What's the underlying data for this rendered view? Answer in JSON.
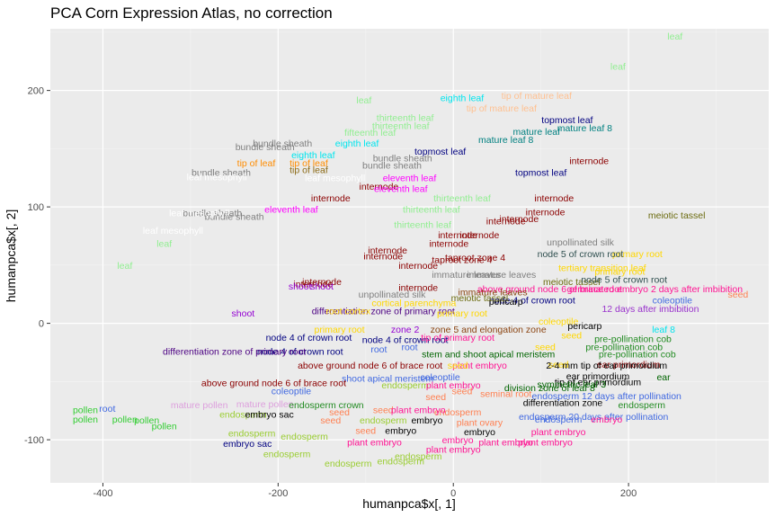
{
  "chart_data": {
    "type": "scatter",
    "title": "PCA Corn Expression Atlas, no correction",
    "xlabel": "humanpca$x[, 1]",
    "ylabel": "humanpca$x[, 2]",
    "xlim": [
      -460,
      360
    ],
    "ylim": [
      -137,
      253
    ],
    "xticks": [
      -400,
      -200,
      0,
      200
    ],
    "yticks": [
      -100,
      0,
      100,
      200
    ],
    "grid": true,
    "background": "#ebebeb",
    "points": [
      {
        "x": 253,
        "y": 247,
        "label": "leaf",
        "color": "#90ee90"
      },
      {
        "x": 188,
        "y": 221,
        "label": "leaf",
        "color": "#90ee90"
      },
      {
        "x": -102,
        "y": 192,
        "label": "leaf",
        "color": "#90ee90"
      },
      {
        "x": -330,
        "y": 69,
        "label": "leaf",
        "color": "#90ee90"
      },
      {
        "x": -375,
        "y": 50,
        "label": "leaf",
        "color": "#90ee90"
      },
      {
        "x": 10,
        "y": 194,
        "label": "eighth leaf",
        "color": "#00e5ee"
      },
      {
        "x": -110,
        "y": 155,
        "label": "eighth leaf",
        "color": "#00e5ee"
      },
      {
        "x": -160,
        "y": 145,
        "label": "eighth leaf",
        "color": "#00e5ee"
      },
      {
        "x": 95,
        "y": 196,
        "label": "tip of mature leaf",
        "color": "#ffc090"
      },
      {
        "x": 55,
        "y": 185,
        "label": "tip of mature leaf",
        "color": "#ffc090"
      },
      {
        "x": -225,
        "y": 138,
        "label": "tip of leaf",
        "color": "#ff8c00"
      },
      {
        "x": -165,
        "y": 138,
        "label": "tip of leaf",
        "color": "#ff8c00"
      },
      {
        "x": -165,
        "y": 132,
        "label": "tip of leaf",
        "color": "#8b6914"
      },
      {
        "x": 130,
        "y": 175,
        "label": "topmost leaf",
        "color": "#000080"
      },
      {
        "x": -15,
        "y": 148,
        "label": "topmost leaf",
        "color": "#000080"
      },
      {
        "x": 100,
        "y": 130,
        "label": "topmost leaf",
        "color": "#000080"
      },
      {
        "x": 150,
        "y": 168,
        "label": "mature leaf 8",
        "color": "#008080"
      },
      {
        "x": 60,
        "y": 158,
        "label": "mature leaf 8",
        "color": "#008080"
      },
      {
        "x": 95,
        "y": 165,
        "label": "mature leaf",
        "color": "#008080"
      },
      {
        "x": -195,
        "y": 155,
        "label": "bundle sheath",
        "color": "#808080"
      },
      {
        "x": -215,
        "y": 152,
        "label": "bundle sheath",
        "color": "#808080"
      },
      {
        "x": -58,
        "y": 142,
        "label": "bundle sheath",
        "color": "#808080"
      },
      {
        "x": -70,
        "y": 136,
        "label": "bundle sheath",
        "color": "#808080"
      },
      {
        "x": -265,
        "y": 130,
        "label": "bundle sheath",
        "color": "#808080"
      },
      {
        "x": -275,
        "y": 95,
        "label": "bundle sheath",
        "color": "#808080"
      },
      {
        "x": -250,
        "y": 92,
        "label": "bundle sheath",
        "color": "#808080"
      },
      {
        "x": -270,
        "y": 126,
        "label": "leaf mesophyll",
        "color": "#ffffff"
      },
      {
        "x": -135,
        "y": 125,
        "label": "leaf mesophyll",
        "color": "#ffffff"
      },
      {
        "x": -290,
        "y": 95,
        "label": "leaf mesophyll",
        "color": "#ffffff"
      },
      {
        "x": -320,
        "y": 80,
        "label": "leaf mesophyll",
        "color": "#ffffff"
      },
      {
        "x": 155,
        "y": 140,
        "label": "internode",
        "color": "#8b0000"
      },
      {
        "x": -85,
        "y": 118,
        "label": "internode",
        "color": "#8b0000"
      },
      {
        "x": -140,
        "y": 108,
        "label": "internode",
        "color": "#8b0000"
      },
      {
        "x": 115,
        "y": 108,
        "label": "internode",
        "color": "#8b0000"
      },
      {
        "x": 105,
        "y": 96,
        "label": "internode",
        "color": "#8b0000"
      },
      {
        "x": 75,
        "y": 90,
        "label": "internode",
        "color": "#8b0000"
      },
      {
        "x": 5,
        "y": 76,
        "label": "internode",
        "color": "#8b0000"
      },
      {
        "x": 30,
        "y": 76,
        "label": "internode",
        "color": "#8b0000"
      },
      {
        "x": -75,
        "y": 63,
        "label": "internode",
        "color": "#8b0000"
      },
      {
        "x": -80,
        "y": 58,
        "label": "internode",
        "color": "#8b0000"
      },
      {
        "x": -40,
        "y": 50,
        "label": "internode",
        "color": "#8b0000"
      },
      {
        "x": -150,
        "y": 36,
        "label": "internode",
        "color": "#8b0000"
      },
      {
        "x": -160,
        "y": 34,
        "label": "internode",
        "color": "#8b0000"
      },
      {
        "x": -40,
        "y": 31,
        "label": "internode",
        "color": "#8b0000"
      },
      {
        "x": -5,
        "y": 69,
        "label": "internode",
        "color": "#8b0000"
      },
      {
        "x": 60,
        "y": 88,
        "label": "internode",
        "color": "#8b0000"
      },
      {
        "x": -60,
        "y": 116,
        "label": "eleventh leaf",
        "color": "#ff00ff"
      },
      {
        "x": -50,
        "y": 125,
        "label": "eleventh leaf",
        "color": "#ff00ff"
      },
      {
        "x": -185,
        "y": 98,
        "label": "eleventh leaf",
        "color": "#ff00ff"
      },
      {
        "x": -55,
        "y": 177,
        "label": "thirteenth leaf",
        "color": "#90ee90"
      },
      {
        "x": -60,
        "y": 170,
        "label": "thirteenth leaf",
        "color": "#90ee90"
      },
      {
        "x": 10,
        "y": 108,
        "label": "thirteenth leaf",
        "color": "#90ee90"
      },
      {
        "x": -25,
        "y": 98,
        "label": "thirteenth leaf",
        "color": "#90ee90"
      },
      {
        "x": -35,
        "y": 85,
        "label": "thirteenth leaf",
        "color": "#90ee90"
      },
      {
        "x": -95,
        "y": 164,
        "label": "fifteenth leaf",
        "color": "#90ee90"
      },
      {
        "x": 255,
        "y": 93,
        "label": "meiotic tassel",
        "color": "#6b6b0f"
      },
      {
        "x": 135,
        "y": 36,
        "label": "meiotic tassel",
        "color": "#6b6b0f"
      },
      {
        "x": 145,
        "y": 70,
        "label": "unpollinated silk",
        "color": "#808080"
      },
      {
        "x": -70,
        "y": 25,
        "label": "unpollinated silk",
        "color": "#808080"
      },
      {
        "x": 210,
        "y": 60,
        "label": "primary root",
        "color": "#ffd700"
      },
      {
        "x": 190,
        "y": 45,
        "label": "primary root",
        "color": "#ffd700"
      },
      {
        "x": 145,
        "y": 60,
        "label": "node 5 of crown root",
        "color": "#2f4f4f"
      },
      {
        "x": 195,
        "y": 38,
        "label": "node 5 of crown root",
        "color": "#2f4f4f"
      },
      {
        "x": 170,
        "y": 48,
        "label": "tertiary transition leaf",
        "color": "#ffd700"
      },
      {
        "x": 25,
        "y": 57,
        "label": "taproot zone 4",
        "color": "#8b0000"
      },
      {
        "x": 10,
        "y": 55,
        "label": "taproot zone 4",
        "color": "#8b0000"
      },
      {
        "x": 15,
        "y": 42,
        "label": "immature leaves",
        "color": "#808080"
      },
      {
        "x": 55,
        "y": 42,
        "label": "immature leaves",
        "color": "#808080"
      },
      {
        "x": 230,
        "y": 30,
        "label": "germinated embryo 2 days after imbibition",
        "color": "#ff1493"
      },
      {
        "x": 110,
        "y": 30,
        "label": "above ground node 6 of brace root",
        "color": "#ff1493"
      },
      {
        "x": 45,
        "y": 27,
        "label": "immature leaves",
        "color": "#8b4513"
      },
      {
        "x": 325,
        "y": 25,
        "label": "seed",
        "color": "#ff7f50"
      },
      {
        "x": 250,
        "y": 20,
        "label": "coleoptile",
        "color": "#4169e1"
      },
      {
        "x": -175,
        "y": 32,
        "label": "shoot",
        "color": "#9400d3"
      },
      {
        "x": -150,
        "y": 32,
        "label": "shoot",
        "color": "#9400d3"
      },
      {
        "x": -240,
        "y": 9,
        "label": "shoot",
        "color": "#9400d3"
      },
      {
        "x": 90,
        "y": 20,
        "label": "node 4 of crown root",
        "color": "#000080"
      },
      {
        "x": 60,
        "y": 19,
        "label": "pericarp",
        "color": "#000000"
      },
      {
        "x": 30,
        "y": 22,
        "label": "meiotic tassel",
        "color": "#6b6b0f"
      },
      {
        "x": 225,
        "y": 13,
        "label": "12 days after imbibition",
        "color": "#9932cc"
      },
      {
        "x": -45,
        "y": 18,
        "label": "cortical parenchyma",
        "color": "#ffd700"
      },
      {
        "x": -80,
        "y": 11,
        "label": "differentiation zone of primary root",
        "color": "#4b0082"
      },
      {
        "x": -120,
        "y": 11,
        "label": "root cortex",
        "color": "#ffd700"
      },
      {
        "x": 10,
        "y": 9,
        "label": "primary root",
        "color": "#ffd700"
      },
      {
        "x": 120,
        "y": 2,
        "label": "coleoptile",
        "color": "#ffd700"
      },
      {
        "x": 150,
        "y": -2,
        "label": "pericarp",
        "color": "#000000"
      },
      {
        "x": 240,
        "y": -5,
        "label": "leaf 8",
        "color": "#00e5ee"
      },
      {
        "x": 205,
        "y": -13,
        "label": "pre-pollination cob",
        "color": "#228b22"
      },
      {
        "x": 195,
        "y": -20,
        "label": "pre-pollination cob",
        "color": "#228b22"
      },
      {
        "x": 135,
        "y": -10,
        "label": "seed",
        "color": "#ffd700"
      },
      {
        "x": -130,
        "y": -5,
        "label": "primary root",
        "color": "#ffd700"
      },
      {
        "x": -55,
        "y": -5,
        "label": "zone 2",
        "color": "#9400d3"
      },
      {
        "x": 40,
        "y": -5,
        "label": "zone 5 and elongation zone",
        "color": "#8b4513"
      },
      {
        "x": -55,
        "y": -14,
        "label": "node 4 of crown root",
        "color": "#000080"
      },
      {
        "x": -165,
        "y": -12,
        "label": "node 4 of crown root",
        "color": "#000080"
      },
      {
        "x": -175,
        "y": -24,
        "label": "node 4 of crown root",
        "color": "#000080"
      },
      {
        "x": -250,
        "y": -24,
        "label": "differentiation zone of primary root",
        "color": "#4b0082"
      },
      {
        "x": -50,
        "y": -20,
        "label": "root",
        "color": "#4169e1"
      },
      {
        "x": 5,
        "y": -12,
        "label": "tip of primary root",
        "color": "#ff1493"
      },
      {
        "x": -85,
        "y": -22,
        "label": "root",
        "color": "#4169e1"
      },
      {
        "x": 40,
        "y": -26,
        "label": "stem and shoot apical meristem",
        "color": "#006400"
      },
      {
        "x": 105,
        "y": -20,
        "label": "seed",
        "color": "#ffd700"
      },
      {
        "x": 210,
        "y": -26,
        "label": "pre-pollination cob",
        "color": "#228b22"
      },
      {
        "x": 200,
        "y": -35,
        "label": "ear primordium",
        "color": "#8b0000"
      },
      {
        "x": 120,
        "y": -35,
        "label": "seed",
        "color": "#ffd700"
      },
      {
        "x": -95,
        "y": -36,
        "label": "above ground node 6 of brace root",
        "color": "#8b0000"
      },
      {
        "x": 30,
        "y": -36,
        "label": "plant embryo",
        "color": "#ff1493"
      },
      {
        "x": 5,
        "y": -36,
        "label": "seed",
        "color": "#ffd700"
      },
      {
        "x": 175,
        "y": -36,
        "label": "2-4 mm tip of ear primordium",
        "color": "#000000"
      },
      {
        "x": 165,
        "y": -45,
        "label": "ear primordium",
        "color": "#000000"
      },
      {
        "x": 165,
        "y": -50,
        "label": "tip of ear primordium",
        "color": "#000000"
      },
      {
        "x": 240,
        "y": -46,
        "label": "ear",
        "color": "#006400"
      },
      {
        "x": -15,
        "y": -46,
        "label": "coleoptile",
        "color": "#4169e1"
      },
      {
        "x": -75,
        "y": -47,
        "label": "shoot apical meristem",
        "color": "#4169e1"
      },
      {
        "x": -205,
        "y": -51,
        "label": "above ground node 6 of brace root",
        "color": "#8b0000"
      },
      {
        "x": -55,
        "y": -53,
        "label": "endosperm",
        "color": "#9acd32"
      },
      {
        "x": 0,
        "y": -53,
        "label": "plant embryo",
        "color": "#ff1493"
      },
      {
        "x": 135,
        "y": -52,
        "label": "symmetric leaf 3",
        "color": "#006400"
      },
      {
        "x": 110,
        "y": -55,
        "label": "division zone of leaf 8",
        "color": "#006400"
      },
      {
        "x": -185,
        "y": -58,
        "label": "coleoptile",
        "color": "#4169e1"
      },
      {
        "x": -20,
        "y": -63,
        "label": "seed",
        "color": "#ff7f50"
      },
      {
        "x": 10,
        "y": -58,
        "label": "seed",
        "color": "#ff7f50"
      },
      {
        "x": 60,
        "y": -60,
        "label": "seminal root",
        "color": "#ff7f50"
      },
      {
        "x": 175,
        "y": -62,
        "label": "endosperm 12 days after pollination",
        "color": "#4169e1"
      },
      {
        "x": 125,
        "y": -68,
        "label": "differentiation zone",
        "color": "#000000"
      },
      {
        "x": 215,
        "y": -70,
        "label": "endosperm",
        "color": "#228b22"
      },
      {
        "x": -215,
        "y": -69,
        "label": "mature pollen",
        "color": "#dda0dd"
      },
      {
        "x": -290,
        "y": -70,
        "label": "mature pollen",
        "color": "#dda0dd"
      },
      {
        "x": -145,
        "y": -70,
        "label": "endosperm crown",
        "color": "#228b22"
      },
      {
        "x": -130,
        "y": -76,
        "label": "seed",
        "color": "#ff7f50"
      },
      {
        "x": -80,
        "y": -74,
        "label": "seed",
        "color": "#ff7f50"
      },
      {
        "x": 5,
        "y": -76,
        "label": "endosperm",
        "color": "#ff7f50"
      },
      {
        "x": -40,
        "y": -74,
        "label": "plant embryo",
        "color": "#ff1493"
      },
      {
        "x": 160,
        "y": -80,
        "label": "endosperm 20 days after pollination",
        "color": "#4169e1"
      },
      {
        "x": -420,
        "y": -74,
        "label": "pollen",
        "color": "#32cd32"
      },
      {
        "x": -395,
        "y": -73,
        "label": "root",
        "color": "#4169e1"
      },
      {
        "x": -420,
        "y": -82,
        "label": "pollen",
        "color": "#32cd32"
      },
      {
        "x": -375,
        "y": -82,
        "label": "pollen",
        "color": "#32cd32"
      },
      {
        "x": -350,
        "y": -83,
        "label": "pollen",
        "color": "#32cd32"
      },
      {
        "x": -330,
        "y": -88,
        "label": "pollen",
        "color": "#32cd32"
      },
      {
        "x": -240,
        "y": -78,
        "label": "endosperm",
        "color": "#9acd32"
      },
      {
        "x": -210,
        "y": -78,
        "label": "embryo sac",
        "color": "#000000"
      },
      {
        "x": -140,
        "y": -83,
        "label": "seed",
        "color": "#ff7f50"
      },
      {
        "x": -80,
        "y": -83,
        "label": "endosperm",
        "color": "#9acd32"
      },
      {
        "x": -30,
        "y": -83,
        "label": "embryo",
        "color": "#000000"
      },
      {
        "x": 30,
        "y": -85,
        "label": "plant ovary",
        "color": "#ff7f50"
      },
      {
        "x": 120,
        "y": -82,
        "label": "endosperm",
        "color": "#4169e1"
      },
      {
        "x": 175,
        "y": -82,
        "label": "embryo",
        "color": "#ff1493"
      },
      {
        "x": -230,
        "y": -94,
        "label": "endosperm",
        "color": "#9acd32"
      },
      {
        "x": -170,
        "y": -97,
        "label": "endosperm",
        "color": "#9acd32"
      },
      {
        "x": -100,
        "y": -92,
        "label": "seed",
        "color": "#ff7f50"
      },
      {
        "x": -60,
        "y": -92,
        "label": "embryo",
        "color": "#000000"
      },
      {
        "x": 30,
        "y": -93,
        "label": "embryo",
        "color": "#000000"
      },
      {
        "x": 120,
        "y": -93,
        "label": "plant embryo",
        "color": "#ff1493"
      },
      {
        "x": -235,
        "y": -103,
        "label": "embryo sac",
        "color": "#000080"
      },
      {
        "x": -90,
        "y": -102,
        "label": "plant embryo",
        "color": "#ff1493"
      },
      {
        "x": 5,
        "y": -100,
        "label": "embryo",
        "color": "#ff1493"
      },
      {
        "x": 60,
        "y": -102,
        "label": "plant embryo",
        "color": "#ff1493"
      },
      {
        "x": 105,
        "y": -102,
        "label": "plant embryo",
        "color": "#ff1493"
      },
      {
        "x": -190,
        "y": -112,
        "label": "endosperm",
        "color": "#9acd32"
      },
      {
        "x": 0,
        "y": -108,
        "label": "plant embryo",
        "color": "#ff1493"
      },
      {
        "x": -40,
        "y": -114,
        "label": "endosperm",
        "color": "#9acd32"
      },
      {
        "x": -120,
        "y": -120,
        "label": "endosperm",
        "color": "#9acd32"
      },
      {
        "x": -60,
        "y": -118,
        "label": "endosperm",
        "color": "#9acd32"
      }
    ]
  }
}
